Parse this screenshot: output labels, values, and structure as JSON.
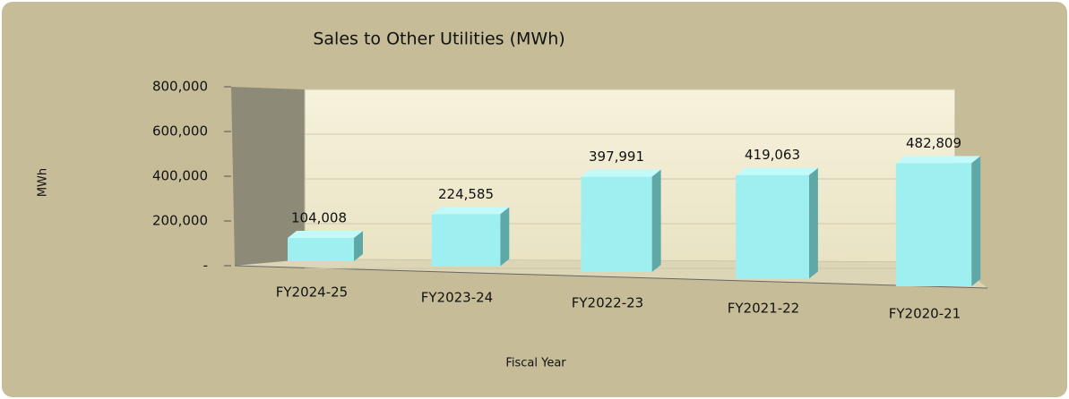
{
  "chart_data": {
    "type": "bar3d",
    "title": "Sales to Other Utilities (MWh)",
    "y_label": "MWh",
    "x_label": "Fiscal Year",
    "categories": [
      "FY2024-25",
      "FY2023-24",
      "FY2022-23",
      "FY2021-22",
      "FY2020-21"
    ],
    "values": [
      104008,
      224585,
      397991,
      419063,
      482809
    ],
    "value_labels": [
      "104,008",
      "224,585",
      "397,991",
      "419,063",
      "482,809"
    ],
    "color": "#9ef0f0",
    "ylim": [
      0,
      800000
    ],
    "yticks": [
      {
        "value": 0,
        "label": "-"
      },
      {
        "value": 200000,
        "label": "200,000"
      },
      {
        "value": 400000,
        "label": "400,000"
      },
      {
        "value": 600000,
        "label": "600,000"
      },
      {
        "value": 800000,
        "label": "800,000"
      }
    ],
    "grid": true
  }
}
